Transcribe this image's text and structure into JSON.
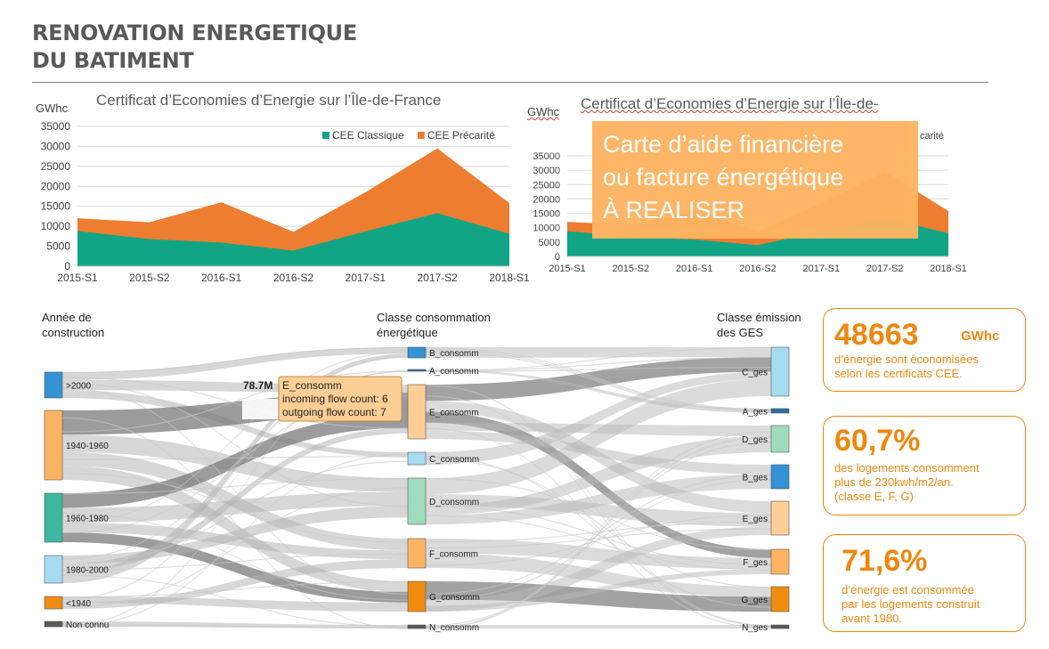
{
  "header": {
    "title_line1": "RENOVATION ENERGETIQUE",
    "title_line2": "DU BATIMENT"
  },
  "chart1": {
    "title": "Certificat d’Economies d’Energie sur l’Île-de-France",
    "unit": "GWhc"
  },
  "chart2": {
    "title": "Certificat d’Economies d’Energie sur l’Île-de-",
    "unit": "GWhc",
    "legend_fragment": "carité"
  },
  "chart_data": [
    {
      "type": "area",
      "title": "Certificat d’Economies d’Energie sur l’Île-de-France",
      "ylabel": "GWhc",
      "ylim": [
        0,
        35000
      ],
      "yticks": [
        "35000",
        "30000",
        "25000",
        "20000",
        "15000",
        "10000",
        "5000",
        "0"
      ],
      "categories": [
        "2015-S1",
        "2015-S2",
        "2016-S1",
        "2016-S2",
        "2017-S1",
        "2017-S2",
        "2018-S1"
      ],
      "stacked": true,
      "legend_position": "top-right",
      "series": [
        {
          "name": "CEE Classique",
          "color": "#12a585",
          "values": [
            8800,
            6800,
            5900,
            3900,
            8700,
            13300,
            8100
          ]
        },
        {
          "name": "CEE Précarité",
          "color": "#ed7d31",
          "values": [
            3200,
            4200,
            10100,
            4700,
            9800,
            16200,
            7700
          ]
        }
      ]
    },
    {
      "type": "area",
      "title": "Certificat d’Economies d’Energie sur l’Île-de-",
      "ylabel": "GWhc",
      "ylim": [
        0,
        35000
      ],
      "yticks": [
        "35000",
        "30000",
        "25000",
        "20000",
        "15000",
        "10000",
        "5000",
        "0"
      ],
      "categories": [
        "2015-S1",
        "2015-S2",
        "2016-S1",
        "2016-S2",
        "2017-S1",
        "2017-S2",
        "2018-S1"
      ],
      "stacked": true,
      "series": [
        {
          "color": "#12a585",
          "values": [
            8800,
            6800,
            5900,
            3900,
            8700,
            13300,
            8100
          ]
        },
        {
          "color": "#ed7d31",
          "values": [
            3200,
            4200,
            10100,
            4700,
            9800,
            16200,
            7700
          ]
        }
      ]
    }
  ],
  "overlay": {
    "line1": "Carte d’aide financière",
    "line2": "ou facture énergétique",
    "line3": "À REALISER"
  },
  "sankey": {
    "header_left_1": "Année de",
    "header_left_2": "construction",
    "header_mid_1": "Classe consommation",
    "header_mid_2": "énergétique",
    "header_right_1": "Classe émission",
    "header_right_2": "des GES",
    "left_nodes": [
      ">2000",
      "1940-1960",
      "1960-1980",
      "1980-2000",
      "<1940",
      "Non connu"
    ],
    "mid_nodes": [
      "B_consomm",
      "A_consomm",
      "E_consomm",
      "C_consomm",
      "D_consomm",
      "F_consomm",
      "G_consomm",
      "N_consomm"
    ],
    "right_nodes": [
      "C_ges",
      "A_ges",
      "D_ges",
      "B_ges",
      "E_ges",
      "F_ges",
      "G_ges",
      "N_ges"
    ],
    "tooltip": {
      "value": "78.7M",
      "name": "E_consomm",
      "incoming": "incoming flow count: 6",
      "outgoing": "outgoing flow count: 7"
    }
  },
  "kpis": [
    {
      "value": "48663",
      "unit": "GWhc",
      "desc1": "d’énergie sont économisées",
      "desc2": "selon les certificats CEE."
    },
    {
      "value": "60,7%",
      "desc1": "des logements consomment",
      "desc2": "plus de 230kwh/m2/an.",
      "desc3": "(classe E, F, G)"
    },
    {
      "value": "71,6%",
      "desc1": "d’énergie est consommée",
      "desc2": "par les logements construit",
      "desc3": "avant 1980."
    }
  ]
}
